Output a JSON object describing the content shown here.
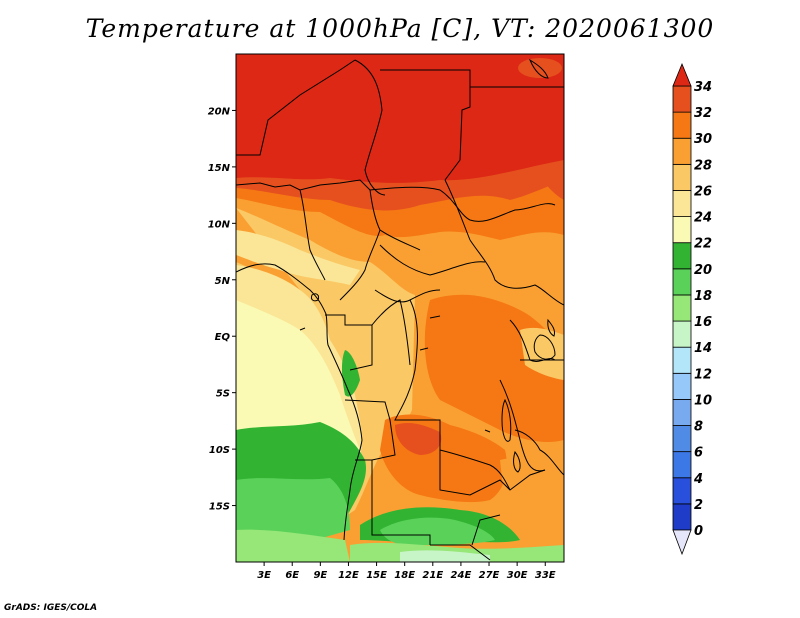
{
  "title": "Temperature at 1000hPa [C], VT: 2020061300",
  "credit": "GrADS: IGES/COLA",
  "map": {
    "lon_range": [
      0,
      35
    ],
    "lat_range": [
      -20,
      25
    ],
    "lat_ticks": [
      {
        "value": 20,
        "label": "20N"
      },
      {
        "value": 15,
        "label": "15N"
      },
      {
        "value": 10,
        "label": "10N"
      },
      {
        "value": 5,
        "label": "5N"
      },
      {
        "value": 0,
        "label": "EQ"
      },
      {
        "value": -5,
        "label": "5S"
      },
      {
        "value": -10,
        "label": "10S"
      },
      {
        "value": -15,
        "label": "15S"
      }
    ],
    "lon_ticks": [
      {
        "value": 3,
        "label": "3E"
      },
      {
        "value": 6,
        "label": "6E"
      },
      {
        "value": 9,
        "label": "9E"
      },
      {
        "value": 12,
        "label": "12E"
      },
      {
        "value": 15,
        "label": "15E"
      },
      {
        "value": 18,
        "label": "18E"
      },
      {
        "value": 21,
        "label": "21E"
      },
      {
        "value": 24,
        "label": "24E"
      },
      {
        "value": 27,
        "label": "27E"
      },
      {
        "value": 30,
        "label": "30E"
      },
      {
        "value": 33,
        "label": "33E"
      }
    ]
  },
  "colorbar": {
    "levels": [
      "0",
      "2",
      "4",
      "6",
      "8",
      "10",
      "12",
      "14",
      "16",
      "18",
      "20",
      "22",
      "24",
      "26",
      "28",
      "30",
      "32",
      "34"
    ],
    "colors": [
      "#1e1e78",
      "#1e3cc8",
      "#2850dc",
      "#3c78e6",
      "#508ce6",
      "#78aaf0",
      "#96c8fa",
      "#b4e6fa",
      "#c8f5c8",
      "#96e678",
      "#5ad25a",
      "#32b432",
      "#fafab4",
      "#fae696",
      "#fac864",
      "#faa032",
      "#f57814",
      "#e6501e",
      "#dc2814"
    ],
    "under_color": "#e6e6fa",
    "over_color": "#dc2814"
  }
}
